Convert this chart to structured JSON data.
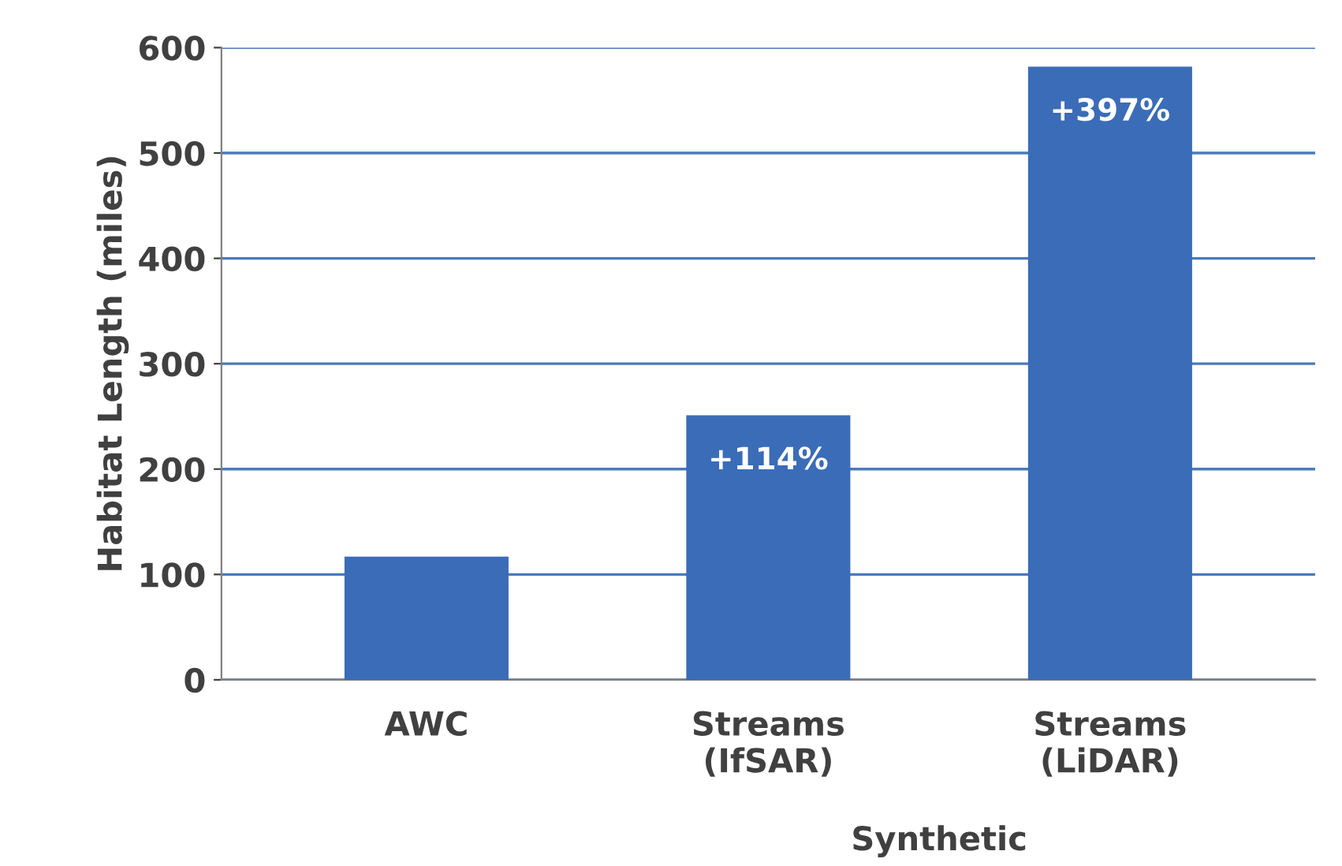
{
  "chart_data": {
    "type": "bar",
    "ylabel": "Habitat Length (miles)",
    "xlabel": "Synthetic",
    "categories": [
      "AWC",
      "Streams\n(IfSAR)",
      "Streams\n(LiDAR)"
    ],
    "values": [
      117,
      251,
      582
    ],
    "color": "#3b6cb7",
    "ylim": [
      0,
      600
    ],
    "yticks": [
      0,
      100,
      200,
      300,
      400,
      500,
      600
    ],
    "grid": "y",
    "annotations": [
      {
        "text": "+114%",
        "x": "Streams\n(IfSAR)",
        "y": 251
      },
      {
        "text": "+397%",
        "x": "Streams\n(LiDAR)",
        "y": 582
      }
    ]
  }
}
